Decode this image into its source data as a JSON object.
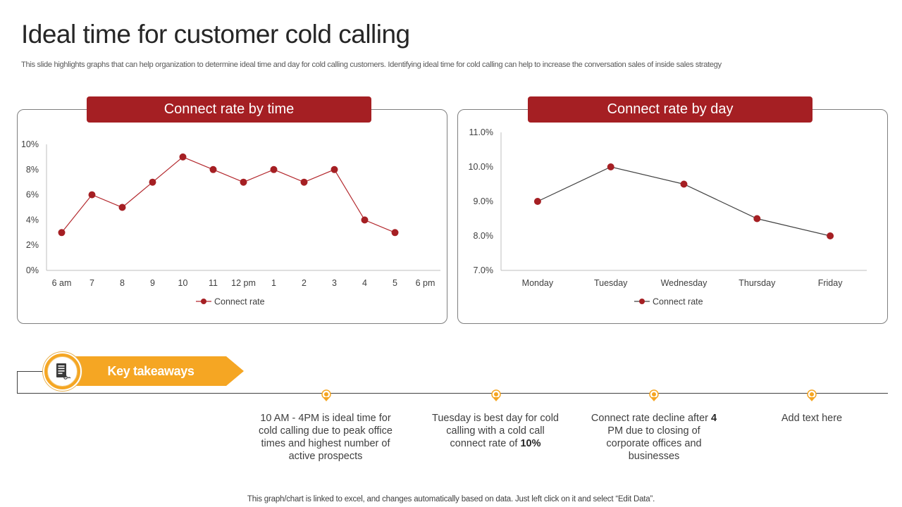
{
  "slide": {
    "title": "Ideal time for customer cold calling",
    "subtitle": "This slide highlights graphs that can help organization to determine ideal time and day for  cold calling customers. Identifying ideal time for cold calling can help to increase the conversation sales of inside sales strategy",
    "footer": "This graph/chart is linked to excel,  and changes automatically based on data. Just left click on it and select “Edit Data”."
  },
  "colors": {
    "accent_red": "#a51f23",
    "marker_red": "#a51f23",
    "line_time": "#b3282d",
    "line_day": "#404040",
    "accent_orange": "#f5a623"
  },
  "chart_data": [
    {
      "type": "line",
      "header": "Connect rate by time",
      "categories": [
        "6 am",
        "7",
        "8",
        "9",
        "10",
        "11",
        "12 pm",
        "1",
        "2",
        "3",
        "4",
        "5",
        "6 pm"
      ],
      "series": [
        {
          "name": "Connect rate",
          "values": [
            3,
            6,
            5,
            7,
            9,
            8,
            7,
            8,
            7,
            8,
            4,
            3,
            null
          ]
        }
      ],
      "yticks": [
        "0%",
        "2%",
        "4%",
        "6%",
        "8%",
        "10%"
      ],
      "ylim": [
        0,
        10
      ],
      "grid": false,
      "legend": "bottom"
    },
    {
      "type": "line",
      "header": "Connect rate by day",
      "categories": [
        "Monday",
        "Tuesday",
        "Wednesday",
        "Thursday",
        "Friday"
      ],
      "series": [
        {
          "name": "Connect rate",
          "values": [
            9.0,
            10.0,
            9.5,
            8.5,
            8.0
          ]
        }
      ],
      "yticks": [
        "7.0%",
        "8.0%",
        "9.0%",
        "10.0%",
        "11.0%"
      ],
      "ylim": [
        7,
        11
      ],
      "grid": false,
      "legend": "bottom"
    }
  ],
  "key_takeaways": {
    "label": "Key takeaways",
    "icon": "document-list-icon",
    "items": [
      {
        "pre": "10 AM - 4PM is ideal time for cold calling due to peak office times and highest number of active prospects",
        "bold": "",
        "post": ""
      },
      {
        "pre": "Tuesday is best day for cold calling with a cold call connect rate of ",
        "bold": "10%",
        "post": ""
      },
      {
        "pre": "Connect rate decline after ",
        "bold": "4",
        "post": " PM due to closing of corporate offices and businesses"
      },
      {
        "pre": "Add text here",
        "bold": "",
        "post": ""
      }
    ]
  }
}
